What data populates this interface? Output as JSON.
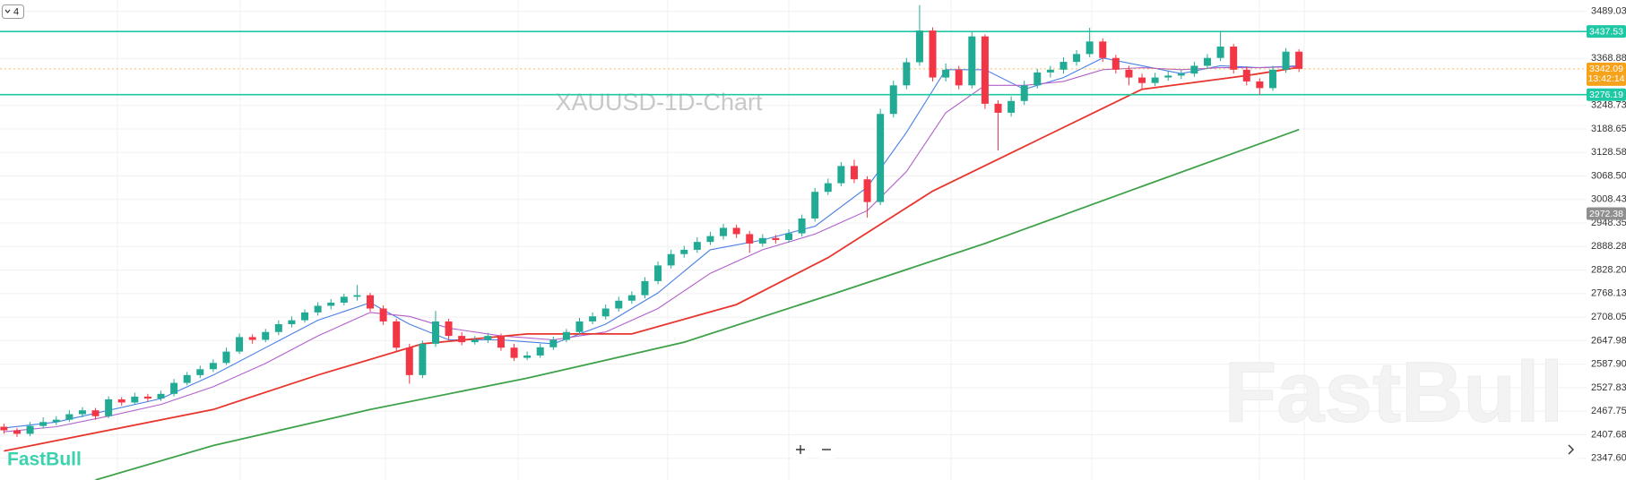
{
  "chart_data": {
    "type": "candlestick",
    "watermark": "XAUUSD-1D-Chart",
    "brand": "FastBull",
    "indicator_count": 4,
    "up_color": "#22ab94",
    "down_color": "#f23645",
    "grid": true,
    "xlim": [
      -0.3,
      124
    ],
    "ylim": [
      2292,
      3518
    ],
    "yticks": [
      3489.03,
      3368.88,
      3248.73,
      3188.65,
      3128.58,
      {
        "value": 3068.5,
        "label": "3068.50"
      },
      3008.43,
      2948.35,
      2888.28,
      {
        "value": 2828.2,
        "label": "2828.20"
      },
      2768.13,
      2708.05,
      2647.98,
      {
        "value": 2587.9,
        "label": "2587.90"
      },
      2527.83,
      2467.75,
      2407.68,
      {
        "value": 2347.6,
        "label": "2347.60"
      }
    ],
    "levels": [
      3437.53,
      3276.19
    ],
    "level_color": "#1ec8a5",
    "marker": 2972.38,
    "countdown": "13:42:14",
    "ohlc": [
      [
        2428,
        2436,
        2410,
        2419
      ],
      [
        2419,
        2425,
        2402,
        2410
      ],
      [
        2410,
        2440,
        2404,
        2430
      ],
      [
        2430,
        2452,
        2424,
        2440
      ],
      [
        2440,
        2455,
        2432,
        2446
      ],
      [
        2446,
        2470,
        2440,
        2460
      ],
      [
        2460,
        2478,
        2452,
        2470
      ],
      [
        2470,
        2476,
        2446,
        2455
      ],
      [
        2455,
        2506,
        2450,
        2498
      ],
      [
        2498,
        2504,
        2482,
        2490
      ],
      [
        2490,
        2515,
        2486,
        2505
      ],
      [
        2505,
        2512,
        2492,
        2500
      ],
      [
        2500,
        2520,
        2494,
        2512
      ],
      [
        2512,
        2550,
        2506,
        2540
      ],
      [
        2540,
        2568,
        2534,
        2560
      ],
      [
        2560,
        2584,
        2552,
        2575
      ],
      [
        2575,
        2600,
        2568,
        2591
      ],
      [
        2591,
        2630,
        2586,
        2620
      ],
      [
        2620,
        2666,
        2614,
        2657
      ],
      [
        2657,
        2664,
        2640,
        2650
      ],
      [
        2650,
        2678,
        2644,
        2670
      ],
      [
        2670,
        2700,
        2662,
        2690
      ],
      [
        2690,
        2710,
        2682,
        2700
      ],
      [
        2700,
        2728,
        2694,
        2720
      ],
      [
        2720,
        2746,
        2712,
        2737
      ],
      [
        2737,
        2754,
        2728,
        2745
      ],
      [
        2745,
        2768,
        2738,
        2760
      ],
      [
        2760,
        2790,
        2750,
        2764
      ],
      [
        2764,
        2770,
        2722,
        2730
      ],
      [
        2730,
        2738,
        2688,
        2697
      ],
      [
        2697,
        2704,
        2620,
        2630
      ],
      [
        2630,
        2640,
        2538,
        2560
      ],
      [
        2560,
        2648,
        2552,
        2640
      ],
      [
        2640,
        2724,
        2632,
        2697
      ],
      [
        2697,
        2704,
        2650,
        2660
      ],
      [
        2660,
        2670,
        2636,
        2644
      ],
      [
        2644,
        2660,
        2638,
        2650
      ],
      [
        2650,
        2668,
        2642,
        2660
      ],
      [
        2660,
        2666,
        2622,
        2630
      ],
      [
        2630,
        2640,
        2596,
        2604
      ],
      [
        2604,
        2620,
        2598,
        2610
      ],
      [
        2610,
        2640,
        2604,
        2631
      ],
      [
        2631,
        2658,
        2624,
        2650
      ],
      [
        2650,
        2678,
        2644,
        2670
      ],
      [
        2670,
        2706,
        2662,
        2697
      ],
      [
        2697,
        2720,
        2690,
        2710
      ],
      [
        2710,
        2740,
        2702,
        2730
      ],
      [
        2730,
        2760,
        2722,
        2750
      ],
      [
        2750,
        2774,
        2742,
        2764
      ],
      [
        2764,
        2810,
        2756,
        2800
      ],
      [
        2800,
        2850,
        2792,
        2840
      ],
      [
        2840,
        2880,
        2832,
        2869
      ],
      [
        2869,
        2890,
        2860,
        2880
      ],
      [
        2880,
        2912,
        2872,
        2900
      ],
      [
        2900,
        2926,
        2892,
        2915
      ],
      [
        2915,
        2946,
        2906,
        2936
      ],
      [
        2936,
        2944,
        2910,
        2920
      ],
      [
        2920,
        2928,
        2872,
        2896
      ],
      [
        2896,
        2920,
        2888,
        2910
      ],
      [
        2910,
        2918,
        2896,
        2905
      ],
      [
        2905,
        2932,
        2898,
        2922
      ],
      [
        2922,
        2970,
        2914,
        2960
      ],
      [
        2960,
        3038,
        2952,
        3028
      ],
      [
        3028,
        3062,
        3020,
        3050
      ],
      [
        3050,
        3104,
        3042,
        3094
      ],
      [
        3094,
        3110,
        3050,
        3060
      ],
      [
        3060,
        3068,
        2962,
        3002
      ],
      [
        3002,
        3240,
        2994,
        3227
      ],
      [
        3227,
        3312,
        3218,
        3300
      ],
      [
        3300,
        3370,
        3290,
        3359
      ],
      [
        3359,
        3505,
        3350,
        3440
      ],
      [
        3440,
        3448,
        3310,
        3320
      ],
      [
        3320,
        3356,
        3310,
        3340
      ],
      [
        3340,
        3350,
        3290,
        3300
      ],
      [
        3300,
        3436,
        3292,
        3425
      ],
      [
        3425,
        3430,
        3240,
        3253
      ],
      [
        3253,
        3262,
        3134,
        3230
      ],
      [
        3230,
        3272,
        3220,
        3260
      ],
      [
        3260,
        3312,
        3250,
        3300
      ],
      [
        3300,
        3342,
        3292,
        3333
      ],
      [
        3333,
        3350,
        3320,
        3340
      ],
      [
        3340,
        3372,
        3330,
        3360
      ],
      [
        3360,
        3390,
        3350,
        3380
      ],
      [
        3380,
        3447,
        3372,
        3412
      ],
      [
        3412,
        3420,
        3360,
        3370
      ],
      [
        3370,
        3378,
        3330,
        3340
      ],
      [
        3340,
        3350,
        3300,
        3320
      ],
      [
        3320,
        3330,
        3290,
        3306
      ],
      [
        3306,
        3332,
        3298,
        3320
      ],
      [
        3320,
        3336,
        3312,
        3325
      ],
      [
        3325,
        3340,
        3316,
        3330
      ],
      [
        3330,
        3360,
        3322,
        3350
      ],
      [
        3350,
        3380,
        3342,
        3370
      ],
      [
        3370,
        3439,
        3362,
        3399
      ],
      [
        3399,
        3406,
        3330,
        3340
      ],
      [
        3340,
        3348,
        3300,
        3310
      ],
      [
        3310,
        3318,
        3276,
        3293
      ],
      [
        3293,
        3350,
        3286,
        3340
      ],
      [
        3340,
        3395,
        3332,
        3386
      ],
      [
        3386,
        3392,
        3334,
        3342.09
      ]
    ],
    "series": [
      {
        "color": "#4a7fe6",
        "x": [
          0,
          4,
          8,
          12,
          16,
          20,
          24,
          28,
          31,
          34,
          38,
          42,
          46,
          50,
          54,
          58,
          62,
          66,
          69,
          72,
          75,
          78,
          81,
          84,
          87,
          90,
          93,
          96,
          99
        ],
        "values": [
          2425,
          2440,
          2470,
          2500,
          2560,
          2630,
          2700,
          2745,
          2690,
          2650,
          2650,
          2640,
          2690,
          2770,
          2880,
          2905,
          2940,
          3040,
          3180,
          3340,
          3340,
          3290,
          3320,
          3370,
          3350,
          3330,
          3350,
          3345,
          3350
        ]
      },
      {
        "color": "#b25fcb",
        "x": [
          0,
          4,
          8,
          12,
          16,
          20,
          24,
          28,
          31,
          34,
          38,
          42,
          46,
          50,
          54,
          58,
          62,
          66,
          69,
          72,
          75,
          78,
          81,
          84,
          87,
          90,
          93,
          96,
          99
        ],
        "values": [
          2415,
          2428,
          2455,
          2485,
          2530,
          2590,
          2660,
          2720,
          2710,
          2680,
          2660,
          2650,
          2670,
          2730,
          2820,
          2880,
          2920,
          2980,
          3080,
          3230,
          3300,
          3300,
          3310,
          3340,
          3345,
          3340,
          3345,
          3345,
          3348
        ]
      },
      {
        "color": "#e8352e",
        "x": [
          0,
          16,
          24,
          32,
          40,
          48,
          56,
          63,
          71,
          79,
          87,
          95,
          99
        ],
        "values": [
          2366,
          2472,
          2560,
          2640,
          2665,
          2665,
          2740,
          2860,
          3030,
          3160,
          3290,
          3325,
          3346
        ]
      },
      {
        "color": "#3fa24a",
        "x": [
          7,
          16,
          28,
          40,
          52,
          63,
          75,
          87,
          99
        ],
        "values": [
          2292,
          2380,
          2472,
          2552,
          2644,
          2763,
          2896,
          3042,
          3187
        ]
      }
    ]
  }
}
